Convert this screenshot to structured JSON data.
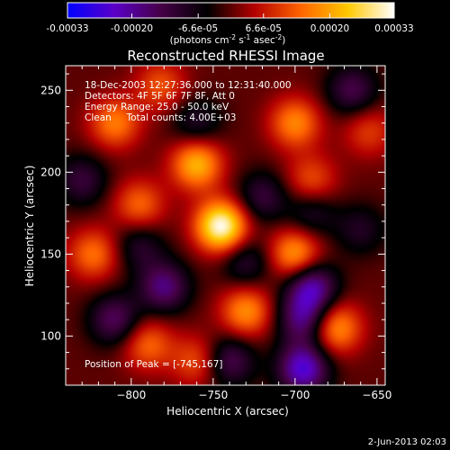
{
  "colorbar": {
    "tick_labels": [
      "-0.00033",
      "-0.00020",
      "-6.6e-05",
      "6.6e-05",
      "0.00020",
      "0.00033"
    ],
    "tick_values": [
      -0.00033,
      -0.0002,
      -6.6e-05,
      6.6e-05,
      0.0002,
      0.00033
    ],
    "range": [
      -0.00033,
      0.00033
    ],
    "unit_label": "(photons cm",
    "unit_exp1": "-2",
    "unit_mid": " s",
    "unit_exp2": "-1",
    "unit_mid2": " asec",
    "unit_exp3": "-2",
    "unit_end": ")",
    "colors": [
      "#0000ff",
      "#5a00c8",
      "#460046",
      "#000000",
      "#b40000",
      "#ff6400",
      "#ffc800",
      "#ffffff"
    ]
  },
  "chart_data": {
    "type": "heatmap",
    "title": "Reconstructed RHESSI Image",
    "xlabel": "Heliocentric X (arcsec)",
    "ylabel": "Heliocentric Y (arcsec)",
    "xlim": [
      -840,
      -645
    ],
    "ylim": [
      70,
      265
    ],
    "x_ticks": [
      -800,
      -750,
      -700,
      -650
    ],
    "x_tick_labels": [
      "−800",
      "−750",
      "−700",
      "−650"
    ],
    "y_ticks": [
      100,
      150,
      200,
      250
    ],
    "y_tick_labels": [
      "100",
      "150",
      "200",
      "250"
    ],
    "sources": [
      {
        "x": -745,
        "y": 167,
        "value": 0.00033
      },
      {
        "x": -760,
        "y": 205,
        "value": 0.00022
      },
      {
        "x": -810,
        "y": 230,
        "value": 0.00016
      },
      {
        "x": -700,
        "y": 230,
        "value": 0.00017
      },
      {
        "x": -782,
        "y": 253,
        "value": 0.00012
      },
      {
        "x": -700,
        "y": 150,
        "value": 0.0002
      },
      {
        "x": -795,
        "y": 180,
        "value": 0.00014
      },
      {
        "x": -823,
        "y": 150,
        "value": 0.00015
      },
      {
        "x": -730,
        "y": 115,
        "value": 0.00018
      },
      {
        "x": -675,
        "y": 105,
        "value": 0.00019
      },
      {
        "x": -790,
        "y": 95,
        "value": 0.00014
      },
      {
        "x": -690,
        "y": 195,
        "value": 0.00012
      },
      {
        "x": -760,
        "y": 85,
        "value": 0.00012
      },
      {
        "x": -655,
        "y": 225,
        "value": 0.0001
      },
      {
        "x": -690,
        "y": 130,
        "value": -0.00022
      },
      {
        "x": -695,
        "y": 110,
        "value": -0.00018
      },
      {
        "x": -695,
        "y": 80,
        "value": -0.00025
      },
      {
        "x": -780,
        "y": 130,
        "value": -0.00018
      },
      {
        "x": -740,
        "y": 85,
        "value": -0.00015
      },
      {
        "x": -810,
        "y": 110,
        "value": -0.00016
      },
      {
        "x": -720,
        "y": 185,
        "value": -0.00012
      },
      {
        "x": -665,
        "y": 250,
        "value": -0.00014
      },
      {
        "x": -760,
        "y": 230,
        "value": -0.0001
      },
      {
        "x": -830,
        "y": 195,
        "value": -0.00012
      },
      {
        "x": -795,
        "y": 155,
        "value": -0.0001
      },
      {
        "x": -690,
        "y": 175,
        "value": -0.0001
      },
      {
        "x": -730,
        "y": 145,
        "value": -0.00011
      },
      {
        "x": -660,
        "y": 165,
        "value": -9e-05
      }
    ],
    "info_lines": [
      "18-Dec-2003 12:27:36.000 to 12:31:40.000",
      "Detectors: 4F 5F 6F 7F 8F, Att 0",
      "Energy Range: 25.0 - 50.0 keV",
      "Clean     Total counts: 4.00E+03"
    ],
    "peak_label": "Position of Peak = [-745,167]",
    "footer_date": "2-Jun-2013 02:03"
  }
}
